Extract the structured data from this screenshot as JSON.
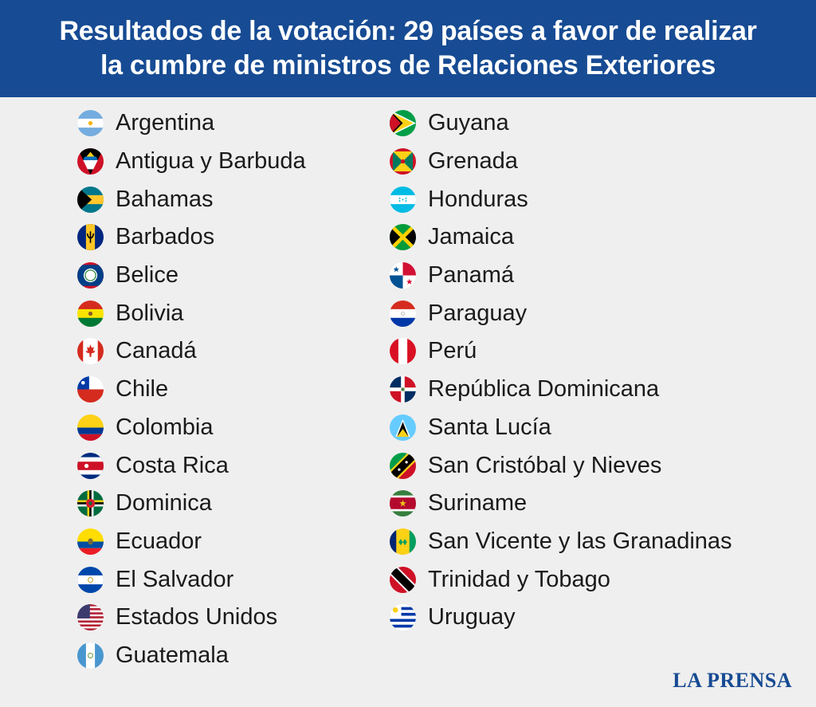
{
  "header": {
    "line1": "Resultados de la votación: 29 países a favor de realizar",
    "line2": "la cumbre de ministros de Relaciones Exteriores"
  },
  "countries_left": [
    {
      "name": "Argentina",
      "flag": "argentina-flag-icon"
    },
    {
      "name": "Antigua y Barbuda",
      "flag": "antigua-barbuda-flag-icon"
    },
    {
      "name": "Bahamas",
      "flag": "bahamas-flag-icon"
    },
    {
      "name": "Barbados",
      "flag": "barbados-flag-icon"
    },
    {
      "name": "Belice",
      "flag": "belize-flag-icon"
    },
    {
      "name": "Bolivia",
      "flag": "bolivia-flag-icon"
    },
    {
      "name": "Canadá",
      "flag": "canada-flag-icon"
    },
    {
      "name": "Chile",
      "flag": "chile-flag-icon"
    },
    {
      "name": "Colombia",
      "flag": "colombia-flag-icon"
    },
    {
      "name": "Costa Rica",
      "flag": "costa-rica-flag-icon"
    },
    {
      "name": "Dominica",
      "flag": "dominica-flag-icon"
    },
    {
      "name": "Ecuador",
      "flag": "ecuador-flag-icon"
    },
    {
      "name": "El Salvador",
      "flag": "el-salvador-flag-icon"
    },
    {
      "name": "Estados Unidos",
      "flag": "usa-flag-icon"
    },
    {
      "name": "Guatemala",
      "flag": "guatemala-flag-icon"
    }
  ],
  "countries_right": [
    {
      "name": "Guyana",
      "flag": "guyana-flag-icon"
    },
    {
      "name": "Grenada",
      "flag": "grenada-flag-icon"
    },
    {
      "name": "Honduras",
      "flag": "honduras-flag-icon"
    },
    {
      "name": "Jamaica",
      "flag": "jamaica-flag-icon"
    },
    {
      "name": "Panamá",
      "flag": "panama-flag-icon"
    },
    {
      "name": "Paraguay",
      "flag": "paraguay-flag-icon"
    },
    {
      "name": "Perú",
      "flag": "peru-flag-icon"
    },
    {
      "name": "República Dominicana",
      "flag": "dominican-republic-flag-icon"
    },
    {
      "name": "Santa Lucía",
      "flag": "saint-lucia-flag-icon"
    },
    {
      "name": "San Cristóbal y Nieves",
      "flag": "saint-kitts-nevis-flag-icon"
    },
    {
      "name": "Suriname",
      "flag": "suriname-flag-icon"
    },
    {
      "name": "San Vicente y las Granadinas",
      "flag": "saint-vincent-flag-icon"
    },
    {
      "name": "Trinidad y Tobago",
      "flag": "trinidad-tobago-flag-icon"
    },
    {
      "name": "Uruguay",
      "flag": "uruguay-flag-icon"
    }
  ],
  "brand": "LA PRENSA",
  "colors": {
    "header_bg": "#174b93",
    "brand": "#174b93",
    "background": "#efefef"
  }
}
